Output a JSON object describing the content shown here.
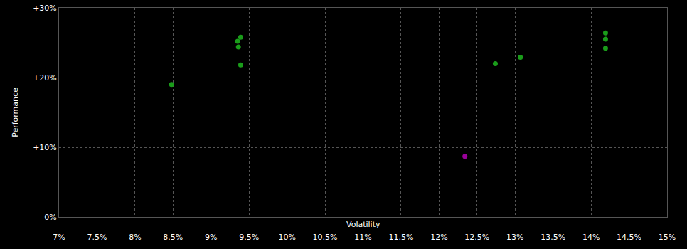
{
  "chart_data": {
    "type": "scatter",
    "x_label": "Volatility",
    "y_label": "Performance",
    "xlim": [
      7,
      15
    ],
    "ylim": [
      0,
      30
    ],
    "xticks": [
      {
        "value": 7,
        "label": "7%"
      },
      {
        "value": 7.5,
        "label": "7.5%"
      },
      {
        "value": 8,
        "label": "8%"
      },
      {
        "value": 8.5,
        "label": "8.5%"
      },
      {
        "value": 9,
        "label": "9%"
      },
      {
        "value": 9.5,
        "label": "9.5%"
      },
      {
        "value": 10,
        "label": "10%"
      },
      {
        "value": 10.5,
        "label": "10.5%"
      },
      {
        "value": 11,
        "label": "11%"
      },
      {
        "value": 11.5,
        "label": "11.5%"
      },
      {
        "value": 12,
        "label": "12%"
      },
      {
        "value": 12.5,
        "label": "12.5%"
      },
      {
        "value": 13,
        "label": "13%"
      },
      {
        "value": 13.5,
        "label": "13.5%"
      },
      {
        "value": 14,
        "label": "14%"
      },
      {
        "value": 14.5,
        "label": "14.5%"
      },
      {
        "value": 15,
        "label": "15%"
      }
    ],
    "yticks": [
      {
        "value": 0,
        "label": "0%"
      },
      {
        "value": 10,
        "label": "+10%"
      },
      {
        "value": 20,
        "label": "+20%"
      },
      {
        "value": 30,
        "label": "+30%"
      }
    ],
    "grid": true,
    "series": [
      {
        "color": "#1a9c1a",
        "x": [
          8.48,
          9.39,
          9.35,
          9.36,
          9.39,
          12.74,
          13.07,
          14.19,
          14.19,
          14.19
        ],
        "values": [
          19.0,
          25.8,
          25.2,
          24.4,
          21.8,
          22.0,
          22.9,
          26.4,
          25.5,
          24.2
        ]
      },
      {
        "color": "#990099",
        "x": [
          12.34
        ],
        "values": [
          8.7
        ]
      }
    ]
  }
}
